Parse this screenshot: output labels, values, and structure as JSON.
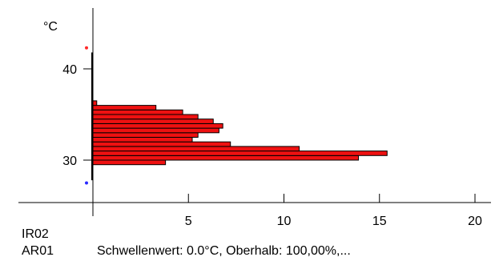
{
  "chart_data": {
    "type": "bar",
    "orientation": "horizontal",
    "y_unit_label": "°C",
    "x_ticks": [
      5,
      10,
      15,
      20
    ],
    "y_ticks": [
      30,
      40
    ],
    "xlim": [
      0,
      20
    ],
    "ylim": [
      27,
      42.5
    ],
    "bin_width": 0.5,
    "bins": [
      {
        "y": 29.5,
        "value": 3.8
      },
      {
        "y": 30.0,
        "value": 13.9
      },
      {
        "y": 30.5,
        "value": 15.4
      },
      {
        "y": 31.0,
        "value": 10.8
      },
      {
        "y": 31.5,
        "value": 7.2
      },
      {
        "y": 32.0,
        "value": 5.2
      },
      {
        "y": 32.5,
        "value": 5.5
      },
      {
        "y": 33.0,
        "value": 6.6
      },
      {
        "y": 33.5,
        "value": 6.8
      },
      {
        "y": 34.0,
        "value": 6.3
      },
      {
        "y": 34.5,
        "value": 5.5
      },
      {
        "y": 35.0,
        "value": 4.7
      },
      {
        "y": 35.5,
        "value": 3.3
      },
      {
        "y": 36.0,
        "value": 0.2
      }
    ],
    "marker_max": {
      "y": 42.3,
      "color": "#ff2a2a"
    },
    "marker_min": {
      "y": 27.5,
      "color": "#2a2aff"
    },
    "bar_color": "#ee1111",
    "bar_edge_color": "#000000",
    "grid": false
  },
  "footer": {
    "row1_label": "IR02",
    "row2_label": "AR01",
    "threshold_text": "Schwellenwert: 0.0°C, Oberhalb: 100,00%,..."
  }
}
